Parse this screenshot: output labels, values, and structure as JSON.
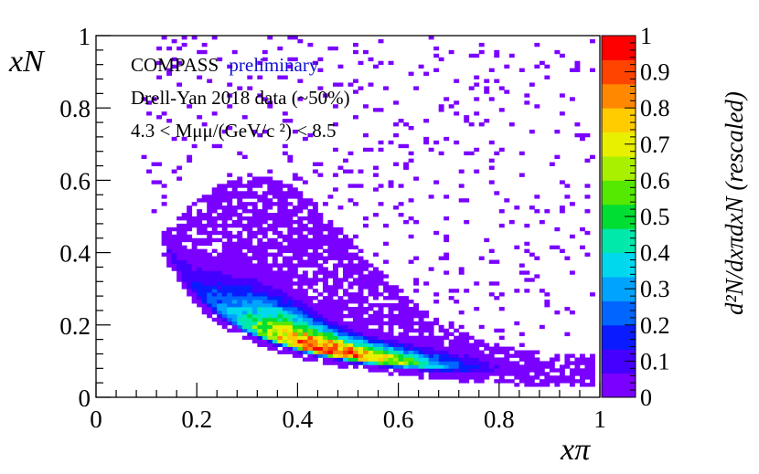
{
  "chart_data": {
    "type": "heatmap",
    "title": "",
    "xlabel": "xπ",
    "ylabel": "xN",
    "xlim": [
      0,
      1
    ],
    "ylim": [
      0,
      1
    ],
    "zlim": [
      0,
      1
    ],
    "x_ticks": [
      "0",
      "0.2",
      "0.4",
      "0.6",
      "0.8",
      "1"
    ],
    "y_ticks": [
      "0",
      "0.2",
      "0.4",
      "0.6",
      "0.8",
      "1"
    ],
    "z_ticks": [
      "0",
      "0.1",
      "0.2",
      "0.3",
      "0.4",
      "0.5",
      "0.6",
      "0.7",
      "0.8",
      "0.9",
      "1"
    ],
    "ztitle": "d²N/dxπdxN (rescaled)",
    "annotations": {
      "experiment": "COMPASS",
      "status": "preliminary",
      "dataset": "Drell-Yan 2018 data (~50%)",
      "mass_range": "4.3 < Mμμ/(GeV/c ²) < 8.5"
    },
    "colorscale": [
      "#7a00ff",
      "#4400ff",
      "#0a1cff",
      "#0066ff",
      "#00a4ff",
      "#00d8ee",
      "#00e8aa",
      "#00dd33",
      "#55e800",
      "#a8f000",
      "#e8f000",
      "#ffcc00",
      "#ff8800",
      "#ff4400",
      "#ff0000"
    ],
    "ridge": {
      "description": "density ridge along xN ≈ 0.058/xπ, peak near xπ≈0.45–0.5, xN≈0.12",
      "peak": {
        "x": 0.48,
        "y": 0.12,
        "z": 1.0
      }
    },
    "grid": false
  }
}
